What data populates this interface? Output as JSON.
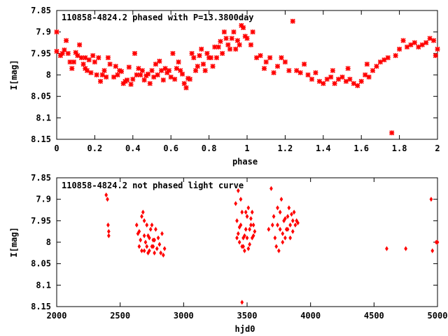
{
  "chart_data": [
    {
      "type": "scatter",
      "title": "110858-4824.2 phased with P=13.3800day",
      "xlabel": "phase",
      "ylabel": "I[mag]",
      "xlim": [
        0,
        2
      ],
      "ylim": [
        7.85,
        8.15
      ],
      "y_inverted": true,
      "xticks": [
        "0",
        "0.2",
        "0.4",
        "0.6",
        "0.8",
        "1",
        "1.2",
        "1.4",
        "1.6",
        "1.8",
        "2"
      ],
      "yticks": [
        "7.85",
        "7.9",
        "7.95",
        "8",
        "8.05",
        "8.1",
        "8.15"
      ],
      "marker_color": "#ff0000",
      "marker": "cross",
      "points": [
        [
          0.0,
          7.9
        ],
        [
          0.0,
          7.945
        ],
        [
          0.02,
          7.955
        ],
        [
          0.03,
          7.95
        ],
        [
          0.04,
          7.942
        ],
        [
          0.05,
          7.92
        ],
        [
          0.06,
          7.95
        ],
        [
          0.07,
          7.97
        ],
        [
          0.08,
          7.985
        ],
        [
          0.09,
          7.97
        ],
        [
          0.1,
          7.948
        ],
        [
          0.11,
          7.955
        ],
        [
          0.12,
          7.93
        ],
        [
          0.13,
          7.96
        ],
        [
          0.14,
          7.975
        ],
        [
          0.15,
          7.96
        ],
        [
          0.16,
          7.99
        ],
        [
          0.17,
          7.965
        ],
        [
          0.18,
          7.995
        ],
        [
          0.19,
          7.955
        ],
        [
          0.2,
          7.97
        ],
        [
          0.21,
          8.0
        ],
        [
          0.22,
          7.96
        ],
        [
          0.23,
          8.015
        ],
        [
          0.24,
          8.0
        ],
        [
          0.25,
          7.99
        ],
        [
          0.26,
          8.005
        ],
        [
          0.27,
          7.96
        ],
        [
          0.28,
          7.975
        ],
        [
          0.3,
          8.005
        ],
        [
          0.31,
          7.98
        ],
        [
          0.32,
          8.0
        ],
        [
          0.33,
          7.99
        ],
        [
          0.34,
          7.992
        ],
        [
          0.35,
          8.02
        ],
        [
          0.36,
          8.015
        ],
        [
          0.37,
          8.012
        ],
        [
          0.38,
          7.982
        ],
        [
          0.39,
          8.022
        ],
        [
          0.4,
          8.01
        ],
        [
          0.41,
          7.95
        ],
        [
          0.42,
          8.0
        ],
        [
          0.43,
          7.985
        ],
        [
          0.44,
          8.0
        ],
        [
          0.45,
          7.99
        ],
        [
          0.46,
          8.012
        ],
        [
          0.47,
          8.002
        ],
        [
          0.48,
          7.998
        ],
        [
          0.49,
          8.02
        ],
        [
          0.5,
          7.99
        ],
        [
          0.51,
          8.005
        ],
        [
          0.52,
          7.975
        ],
        [
          0.53,
          8.0
        ],
        [
          0.54,
          7.968
        ],
        [
          0.55,
          7.99
        ],
        [
          0.56,
          8.012
        ],
        [
          0.57,
          7.985
        ],
        [
          0.58,
          7.995
        ],
        [
          0.59,
          7.99
        ],
        [
          0.6,
          8.005
        ],
        [
          0.61,
          7.95
        ],
        [
          0.62,
          8.01
        ],
        [
          0.63,
          7.985
        ],
        [
          0.64,
          7.97
        ],
        [
          0.65,
          7.99
        ],
        [
          0.66,
          7.998
        ],
        [
          0.67,
          8.02
        ],
        [
          0.68,
          8.03
        ],
        [
          0.69,
          8.008
        ],
        [
          0.7,
          8.01
        ],
        [
          0.71,
          7.95
        ],
        [
          0.72,
          7.96
        ],
        [
          0.73,
          7.99
        ],
        [
          0.74,
          7.98
        ],
        [
          0.75,
          7.955
        ],
        [
          0.76,
          7.94
        ],
        [
          0.77,
          7.975
        ],
        [
          0.78,
          7.99
        ],
        [
          0.79,
          7.95
        ],
        [
          0.8,
          7.96
        ],
        [
          0.81,
          7.96
        ],
        [
          0.82,
          7.98
        ],
        [
          0.83,
          7.935
        ],
        [
          0.84,
          7.96
        ],
        [
          0.85,
          7.935
        ],
        [
          0.86,
          7.922
        ],
        [
          0.87,
          7.95
        ],
        [
          0.88,
          7.9
        ],
        [
          0.89,
          7.915
        ],
        [
          0.9,
          7.93
        ],
        [
          0.91,
          7.94
        ],
        [
          0.92,
          7.915
        ],
        [
          0.93,
          7.9
        ],
        [
          0.94,
          7.94
        ],
        [
          0.95,
          7.92
        ],
        [
          0.96,
          7.93
        ],
        [
          0.97,
          7.885
        ],
        [
          0.98,
          7.89
        ],
        [
          0.99,
          7.91
        ],
        [
          1.0,
          7.915
        ],
        [
          1.02,
          7.93
        ],
        [
          1.03,
          7.9
        ],
        [
          1.05,
          7.96
        ],
        [
          1.07,
          7.955
        ],
        [
          1.09,
          7.985
        ],
        [
          1.1,
          7.97
        ],
        [
          1.12,
          7.96
        ],
        [
          1.14,
          7.995
        ],
        [
          1.16,
          7.98
        ],
        [
          1.18,
          7.96
        ],
        [
          1.2,
          7.97
        ],
        [
          1.22,
          7.99
        ],
        [
          1.24,
          7.875
        ],
        [
          1.26,
          7.99
        ],
        [
          1.28,
          7.995
        ],
        [
          1.3,
          7.975
        ],
        [
          1.32,
          8.0
        ],
        [
          1.34,
          8.01
        ],
        [
          1.36,
          7.995
        ],
        [
          1.38,
          8.015
        ],
        [
          1.4,
          8.02
        ],
        [
          1.42,
          8.01
        ],
        [
          1.44,
          8.005
        ],
        [
          1.46,
          8.02
        ],
        [
          1.48,
          8.01
        ],
        [
          1.5,
          8.005
        ],
        [
          1.52,
          8.015
        ],
        [
          1.54,
          8.01
        ],
        [
          1.56,
          8.02
        ],
        [
          1.58,
          8.025
        ],
        [
          1.6,
          8.015
        ],
        [
          1.62,
          8.0
        ],
        [
          1.64,
          8.005
        ],
        [
          1.66,
          7.99
        ],
        [
          1.68,
          7.98
        ],
        [
          1.7,
          7.97
        ],
        [
          1.72,
          7.965
        ],
        [
          1.74,
          7.96
        ],
        [
          1.76,
          8.135
        ],
        [
          1.78,
          7.955
        ],
        [
          1.8,
          7.94
        ],
        [
          1.82,
          7.92
        ],
        [
          1.84,
          7.935
        ],
        [
          1.86,
          7.93
        ],
        [
          1.88,
          7.925
        ],
        [
          1.9,
          7.935
        ],
        [
          1.92,
          7.93
        ],
        [
          1.94,
          7.925
        ],
        [
          1.96,
          7.915
        ],
        [
          1.98,
          7.92
        ],
        [
          2.0,
          7.94
        ],
        [
          1.99,
          7.955
        ],
        [
          1.45,
          7.99
        ],
        [
          1.53,
          7.985
        ],
        [
          1.63,
          7.975
        ],
        [
          0.15,
          7.985
        ]
      ]
    },
    {
      "type": "scatter",
      "title": "110858-4824.2 not phased light curve",
      "xlabel": "hjd0",
      "ylabel": "I[mag]",
      "xlim": [
        2000,
        5000
      ],
      "ylim": [
        7.85,
        8.15
      ],
      "y_inverted": true,
      "xticks": [
        "2000",
        "2500",
        "3000",
        "3500",
        "4000",
        "4500",
        "5000"
      ],
      "yticks": [
        "7.85",
        "7.9",
        "7.95",
        "8",
        "8.05",
        "8.1",
        "8.15"
      ],
      "marker_color": "#ff0000",
      "marker": "diamond",
      "points": [
        [
          2390,
          7.89
        ],
        [
          2400,
          7.9
        ],
        [
          2405,
          7.96
        ],
        [
          2410,
          7.975
        ],
        [
          2410,
          7.985
        ],
        [
          2630,
          7.96
        ],
        [
          2640,
          7.98
        ],
        [
          2650,
          8.01
        ],
        [
          2660,
          7.995
        ],
        [
          2670,
          8.02
        ],
        [
          2680,
          7.93
        ],
        [
          2690,
          7.95
        ],
        [
          2700,
          8.0
        ],
        [
          2710,
          7.96
        ],
        [
          2720,
          7.985
        ],
        [
          2730,
          8.02
        ],
        [
          2740,
          7.97
        ],
        [
          2750,
          8.01
        ],
        [
          2760,
          7.995
        ],
        [
          2770,
          8.025
        ],
        [
          2780,
          7.97
        ],
        [
          2790,
          8.015
        ],
        [
          2800,
          7.99
        ],
        [
          2810,
          8.005
        ],
        [
          2820,
          8.025
        ],
        [
          2830,
          7.98
        ],
        [
          2840,
          8.03
        ],
        [
          2850,
          8.015
        ],
        [
          2650,
          7.975
        ],
        [
          2670,
          7.94
        ],
        [
          2690,
          8.02
        ],
        [
          2710,
          8.01
        ],
        [
          2730,
          7.99
        ],
        [
          2750,
          7.96
        ],
        [
          2770,
          7.995
        ],
        [
          2690,
          7.985
        ],
        [
          2720,
          8.025
        ],
        [
          2760,
          8.01
        ],
        [
          3410,
          7.91
        ],
        [
          3420,
          7.95
        ],
        [
          3430,
          7.98
        ],
        [
          3440,
          8.0
        ],
        [
          3450,
          7.96
        ],
        [
          3460,
          7.93
        ],
        [
          3470,
          7.99
        ],
        [
          3480,
          8.02
        ],
        [
          3490,
          7.97
        ],
        [
          3500,
          7.94
        ],
        [
          3510,
          7.92
        ],
        [
          3520,
          8.005
        ],
        [
          3530,
          7.96
        ],
        [
          3540,
          7.99
        ],
        [
          3550,
          7.985
        ],
        [
          3560,
          7.975
        ],
        [
          3420,
          7.99
        ],
        [
          3440,
          7.965
        ],
        [
          3460,
          8.01
        ],
        [
          3480,
          7.985
        ],
        [
          3500,
          7.99
        ],
        [
          3520,
          7.97
        ],
        [
          3540,
          7.93
        ],
        [
          3430,
          7.88
        ],
        [
          3450,
          7.9
        ],
        [
          3470,
          8.01
        ],
        [
          3490,
          7.93
        ],
        [
          3510,
          8.015
        ],
        [
          3530,
          7.945
        ],
        [
          3550,
          7.96
        ],
        [
          3460,
          8.14
        ],
        [
          3670,
          7.97
        ],
        [
          3690,
          7.875
        ],
        [
          3700,
          7.96
        ],
        [
          3710,
          7.94
        ],
        [
          3720,
          7.99
        ],
        [
          3730,
          8.01
        ],
        [
          3740,
          7.96
        ],
        [
          3750,
          8.02
        ],
        [
          3760,
          7.93
        ],
        [
          3770,
          7.9
        ],
        [
          3780,
          7.98
        ],
        [
          3790,
          7.95
        ],
        [
          3800,
          7.99
        ],
        [
          3810,
          7.97
        ],
        [
          3820,
          7.94
        ],
        [
          3830,
          7.92
        ],
        [
          3840,
          7.96
        ],
        [
          3850,
          7.935
        ],
        [
          3860,
          7.975
        ],
        [
          3870,
          7.93
        ],
        [
          3880,
          7.96
        ],
        [
          3890,
          7.95
        ],
        [
          3900,
          7.955
        ],
        [
          3740,
          7.92
        ],
        [
          3760,
          7.97
        ],
        [
          3780,
          8.0
        ],
        [
          3800,
          7.945
        ],
        [
          3820,
          7.97
        ],
        [
          3840,
          7.99
        ],
        [
          3860,
          7.95
        ],
        [
          4600,
          8.015
        ],
        [
          4750,
          8.015
        ],
        [
          4950,
          7.9
        ],
        [
          4960,
          8.02
        ],
        [
          4990,
          8.0
        ],
        [
          5000,
          8.0
        ]
      ]
    }
  ]
}
